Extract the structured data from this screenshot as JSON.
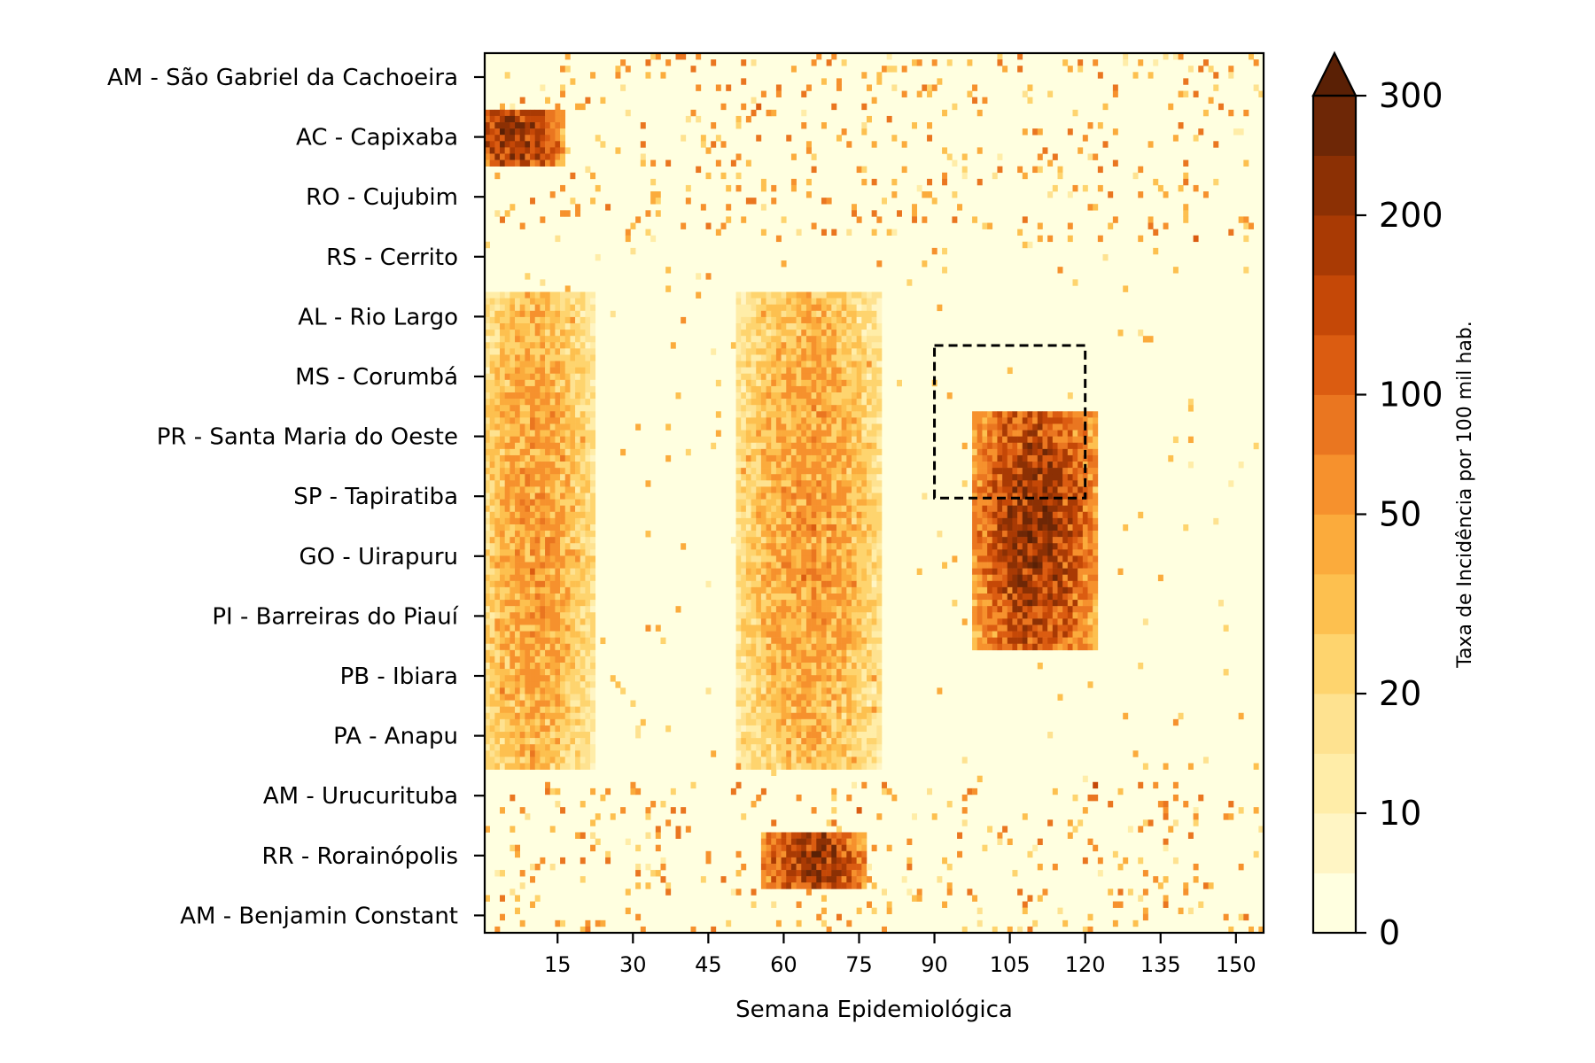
{
  "chart_data": {
    "type": "heatmap",
    "xlabel": "Semana Epidemiológica",
    "ylabel": "",
    "x_range": [
      1,
      155
    ],
    "x_ticks": [
      15,
      30,
      45,
      60,
      75,
      90,
      105,
      120,
      135,
      150
    ],
    "y_tick_labels": [
      "AM - São Gabriel da Cachoeira",
      "AC - Capixaba",
      "RO - Cujubim",
      "RS - Cerrito",
      "AL - Rio Largo",
      "MS - Corumbá",
      "PR - Santa Maria do Oeste",
      "SP - Tapiratiba",
      "GO - Uirapuru",
      "PI - Barreiras do Piauí",
      "PB - Ibiara",
      "PA - Anapu",
      "AM - Urucurituba",
      "RR - Rorainópolis",
      "AM - Benjamin Constant"
    ],
    "colorbar": {
      "label": "Taxa de Incidência por 100 mil hab.",
      "ticks": [
        0,
        10,
        20,
        50,
        100,
        200,
        300
      ],
      "boundaries": [
        0,
        5,
        10,
        15,
        20,
        30,
        40,
        50,
        75,
        100,
        125,
        150,
        200,
        250,
        300
      ],
      "colors": [
        "#ffffe0",
        "#fff5c4",
        "#ffeda8",
        "#fee290",
        "#fed46e",
        "#fdc04f",
        "#fbab3c",
        "#f6912d",
        "#ea7620",
        "#db5c11",
        "#c54807",
        "#a93a04",
        "#8c3004",
        "#6e2706"
      ],
      "extend": "max",
      "extend_color": "#5a2005"
    },
    "colormap": "YlOrBr",
    "series_description_rows": 140,
    "highlight_box": {
      "x_range": [
        90,
        120
      ],
      "y_label_range": [
        "MS - Corumbá",
        "SP - Tapiratiba"
      ],
      "style": "dashed"
    },
    "hotspots": [
      {
        "x_range": [
          1,
          12
        ],
        "rows": [
          "AC - Capixaba"
        ],
        "intensity": "high"
      },
      {
        "x_range": [
          102,
          118
        ],
        "rows": [
          "PR - Santa Maria do Oeste",
          "SP - Tapiratiba",
          "GO - Uirapuru",
          "PI - Barreiras do Piauí"
        ],
        "intensity": "high"
      },
      {
        "x_range": [
          55,
          75
        ],
        "rows": [
          "AL - Rio Largo",
          "MS - Corumbá",
          "PI - Barreiras do Piauí",
          "PB - Ibiara",
          "PA - Anapu"
        ],
        "intensity": "medium"
      },
      {
        "x_range": [
          3,
          18
        ],
        "rows": [
          "AL - Rio Largo",
          "SP - Tapiratiba",
          "GO - Uirapuru",
          "PB - Ibiara",
          "PA - Anapu"
        ],
        "intensity": "medium"
      },
      {
        "x_range": [
          60,
          72
        ],
        "rows": [
          "RR - Rorainópolis"
        ],
        "intensity": "high"
      }
    ]
  }
}
